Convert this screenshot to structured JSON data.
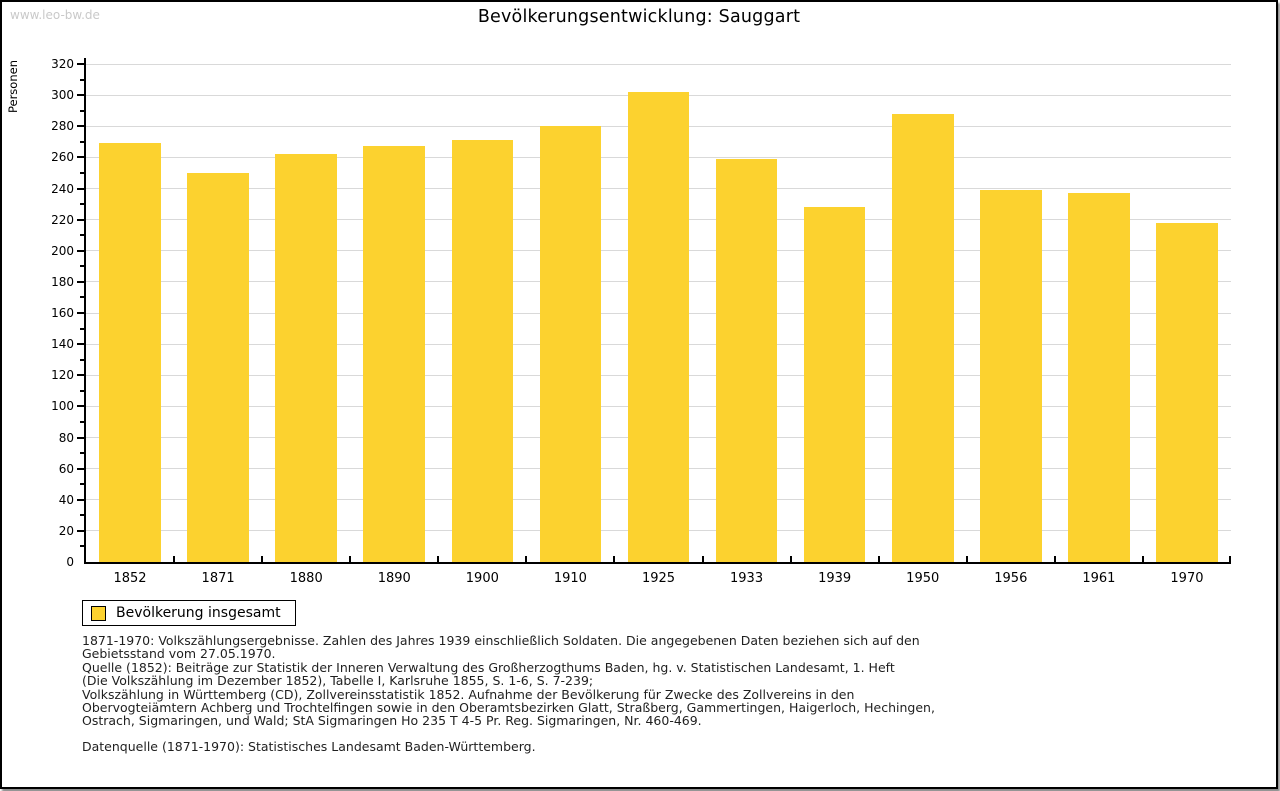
{
  "watermark": "www.leo-bw.de",
  "chart": {
    "title": "Bevölkerungsentwicklung: Sauggart",
    "ylabel": "Personen"
  },
  "legend": {
    "label": "Bevölkerung insgesamt"
  },
  "colors": {
    "bar": "#FCD22F",
    "grid": "#D9D9D9",
    "axis": "#000000",
    "watermark": "#C9C9C9"
  },
  "chart_data": {
    "type": "bar",
    "title": "Bevölkerungsentwicklung: Sauggart",
    "xlabel": "",
    "ylabel": "Personen",
    "categories": [
      "1852",
      "1871",
      "1880",
      "1890",
      "1900",
      "1910",
      "1925",
      "1933",
      "1939",
      "1950",
      "1956",
      "1961",
      "1970"
    ],
    "values": [
      269,
      250,
      262,
      267,
      271,
      280,
      302,
      259,
      228,
      288,
      239,
      237,
      218
    ],
    "ylim": [
      0,
      320
    ],
    "ytick_step": 20,
    "yminor_step": 10,
    "grid": true,
    "legend": [
      "Bevölkerung insgesamt"
    ],
    "legend_position": "bottom-left",
    "bar_color": "#FCD22F"
  },
  "footer": {
    "lines": [
      "1871-1970: Volkszählungsergebnisse. Zahlen des Jahres 1939 einschließlich Soldaten. Die angegebenen Daten beziehen sich auf den",
      "Gebietsstand vom 27.05.1970.",
      "Quelle (1852): Beiträge zur Statistik der Inneren Verwaltung des Großherzogthums Baden, hg. v. Statistischen Landesamt, 1. Heft",
      "(Die Volkszählung im Dezember 1852), Tabelle I, Karlsruhe 1855, S. 1-6, S. 7-239;",
      "Volkszählung in Württemberg (CD), Zollvereinsstatistik 1852. Aufnahme der Bevölkerung für Zwecke des Zollvereins in den",
      "Obervogteiämtern Achberg und Trochtelfingen sowie in den Oberamtsbezirken Glatt, Straßberg, Gammertingen, Haigerloch, Hechingen,",
      "Ostrach, Sigmaringen, und Wald; StA Sigmaringen Ho 235 T 4-5 Pr. Reg. Sigmaringen, Nr. 460-469."
    ],
    "datasource": "Datenquelle (1871-1970): Statistisches Landesamt Baden-Württemberg."
  }
}
